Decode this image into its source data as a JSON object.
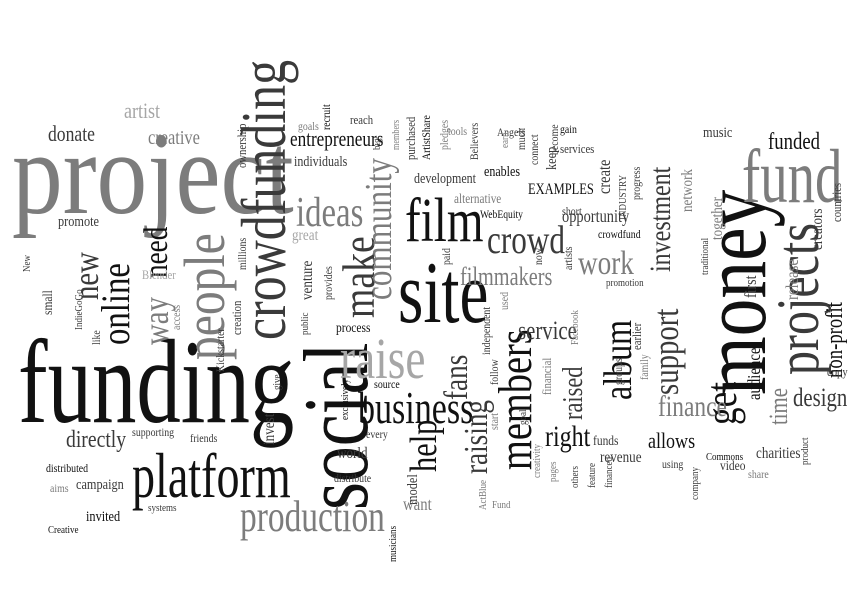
{
  "colors": {
    "black": "#111111",
    "dark": "#3a3a3a",
    "gray": "#7c7c7c",
    "light": "#a6a6a6"
  },
  "words": {
    "project": "project",
    "funding": "funding",
    "social": "social",
    "crowdfunding": "crowdfunding",
    "money": "money",
    "platform": "platform",
    "site": "site",
    "projects": "projects",
    "fund": "fund",
    "film": "film",
    "people": "people",
    "raise": "raise",
    "members": "members",
    "business": "business",
    "production": "production",
    "online": "online",
    "make": "make",
    "community": "community",
    "ideas": "ideas",
    "crowd": "crowd",
    "new": "new",
    "need": "need",
    "way": "way",
    "help": "help",
    "raising": "raising",
    "fans": "fans",
    "support": "support",
    "investment": "investment",
    "get": "get",
    "album": "album",
    "raised": "raised",
    "right": "right",
    "finance": "finance",
    "design": "design",
    "time": "time",
    "funded": "funded",
    "work": "work",
    "filmmakers": "filmmakers",
    "service": "service",
    "entrepreneurs": "entrepreneurs",
    "donate": "donate",
    "creative": "creative",
    "artist": "artist",
    "directly": "directly",
    "allows": "allows",
    "nonprofit": "non-profit",
    "audience": "audience",
    "release": "release",
    "creators": "creators",
    "countries": "countries",
    "copy": "copy",
    "music": "music",
    "network": "network",
    "together": "together",
    "opportunity": "opportunity",
    "create": "create",
    "examples": "EXAMPLES",
    "webequity": "WebEquity",
    "alternative": "alternative",
    "development": "development",
    "enables": "enables",
    "individuals": "individuals",
    "ownership": "ownership",
    "goals": "goals",
    "recruit": "recruit",
    "reach": "reach",
    "purchased": "purchased",
    "artistshare": "ArtistShare",
    "pledges": "pledges",
    "tools": "tools",
    "believers": "Believers",
    "angels": "Angels",
    "earn": "earn",
    "much": "much",
    "connect": "connect",
    "become": "become",
    "keep": "keep",
    "gain": "gain",
    "services": "services",
    "industry": "INDUSTRY",
    "progress": "progress",
    "first": "first",
    "traditional": "traditional",
    "promote": "promote",
    "artists": "artists",
    "short": "short",
    "crowdfund": "crowdfund",
    "promotion": "promotion",
    "paid": "paid",
    "now": "now",
    "great": "great",
    "venture": "venture",
    "provides": "provides",
    "millions": "millions",
    "blender": "Blender",
    "small": "small",
    "indiegogo": "IndieGoGo",
    "like": "like",
    "access": "access",
    "creation": "creation",
    "public": "public",
    "process": "process",
    "independent": "independent",
    "used": "used",
    "facebook": "Facebook",
    "earlier": "earlier",
    "family": "family",
    "financial": "financial",
    "follow": "follow",
    "source": "source",
    "groups": "groups",
    "kickstarter": "Kickstarter",
    "give": "give",
    "exclusively": "exclusively",
    "invest": "invest",
    "every": "every",
    "friends": "friends",
    "supporting": "supporting",
    "world": "world",
    "distribute": "distribute",
    "creativity": "creativity",
    "goal": "goal",
    "start": "start",
    "pages": "pages",
    "others": "others",
    "feature": "feature",
    "financed": "financed",
    "funds": "funds",
    "revenue": "revenue",
    "video": "video",
    "using": "using",
    "company": "company",
    "commons": "Commons",
    "share": "share",
    "product": "product",
    "charities": "charities",
    "distributed": "distributed",
    "aims": "aims",
    "campaign": "campaign",
    "invited": "invited",
    "systems": "systems",
    "creative2": "Creative",
    "musicians": "musicians",
    "model": "model",
    "want": "want",
    "actblue": "ActBlue",
    "fund2": "Fund",
    "newcap": "New",
    "big": "big"
  }
}
